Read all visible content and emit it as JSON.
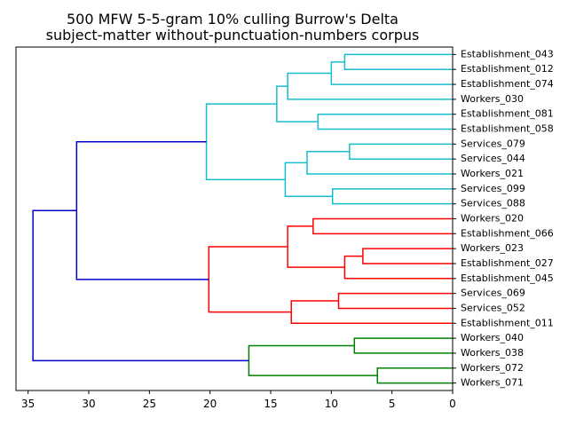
{
  "chart_data": {
    "type": "dendrogram",
    "title": "500 MFW 5-5-gram 10% culling Burrow's Delta",
    "subtitle": "subject-matter without-punctuation-numbers corpus",
    "xlim": [
      36,
      0
    ],
    "x_ticks": [
      35,
      30,
      25,
      20,
      15,
      10,
      5,
      0
    ],
    "leaves": [
      "Establishment_043",
      "Establishment_012",
      "Establishment_074",
      "Workers_030",
      "Establishment_081",
      "Establishment_058",
      "Services_079",
      "Services_044",
      "Workers_021",
      "Services_099",
      "Services_088",
      "Workers_020",
      "Establishment_066",
      "Workers_023",
      "Establishment_027",
      "Establishment_045",
      "Services_069",
      "Services_052",
      "Establishment_011",
      "Workers_040",
      "Workers_038",
      "Workers_072",
      "Workers_071"
    ],
    "colors": {
      "cyan": "#17becf",
      "red": "#ff0000",
      "green": "#008000",
      "blue": "#0000cc"
    },
    "merges": [
      {
        "id": "m1",
        "a": 0,
        "b": 1,
        "height": 8.9,
        "color": "cyan"
      },
      {
        "id": "m2",
        "a": "m1",
        "b": 2,
        "height": 10.0,
        "color": "cyan"
      },
      {
        "id": "m3",
        "a": "m2",
        "b": 3,
        "height": 13.6,
        "color": "cyan"
      },
      {
        "id": "m4",
        "a": 4,
        "b": 5,
        "height": 11.1,
        "color": "cyan"
      },
      {
        "id": "m5",
        "a": "m3",
        "b": "m4",
        "height": 14.5,
        "color": "cyan"
      },
      {
        "id": "m6",
        "a": 6,
        "b": 7,
        "height": 8.5,
        "color": "cyan"
      },
      {
        "id": "m7",
        "a": "m6",
        "b": 8,
        "height": 12.0,
        "color": "cyan"
      },
      {
        "id": "m8",
        "a": 9,
        "b": 10,
        "height": 9.9,
        "color": "cyan"
      },
      {
        "id": "m9",
        "a": "m7",
        "b": "m8",
        "height": 13.8,
        "color": "cyan"
      },
      {
        "id": "m10",
        "a": "m5",
        "b": "m9",
        "height": 20.3,
        "color": "cyan"
      },
      {
        "id": "m11",
        "a": 11,
        "b": 12,
        "height": 11.5,
        "color": "red"
      },
      {
        "id": "m12",
        "a": 13,
        "b": 14,
        "height": 7.4,
        "color": "red"
      },
      {
        "id": "m13",
        "a": "m12",
        "b": 15,
        "height": 8.9,
        "color": "red"
      },
      {
        "id": "m14",
        "a": "m11",
        "b": "m13",
        "height": 13.6,
        "color": "red"
      },
      {
        "id": "m15",
        "a": 16,
        "b": 17,
        "height": 9.4,
        "color": "red"
      },
      {
        "id": "m16",
        "a": "m15",
        "b": 18,
        "height": 13.3,
        "color": "red"
      },
      {
        "id": "m17",
        "a": "m14",
        "b": "m16",
        "height": 20.1,
        "color": "red"
      },
      {
        "id": "m18",
        "a": 19,
        "b": 20,
        "height": 8.1,
        "color": "green"
      },
      {
        "id": "m19",
        "a": 21,
        "b": 22,
        "height": 6.2,
        "color": "green"
      },
      {
        "id": "m20",
        "a": "m18",
        "b": "m19",
        "height": 16.8,
        "color": "green"
      },
      {
        "id": "m21",
        "a": "m10",
        "b": "m17",
        "height": 31.0,
        "color": "blue"
      },
      {
        "id": "m22",
        "a": "m21",
        "b": "m20",
        "height": 34.6,
        "color": "blue"
      }
    ]
  }
}
